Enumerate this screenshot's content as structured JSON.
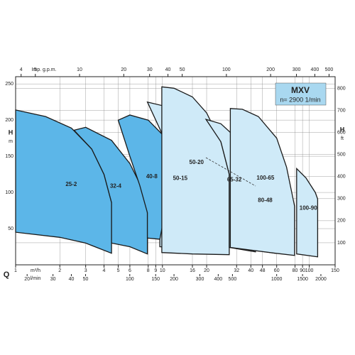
{
  "chart_data": {
    "type": "region",
    "title": "MXV",
    "subtitle": "n= 2900 1/min",
    "x_symbol": "Q",
    "x_label": "m³/h",
    "x3_label": "l/min",
    "x2_label": "Imp. g.p.m.",
    "y_label": "H",
    "y_unit": "m",
    "y2_label": "H",
    "y2_unit": "ft",
    "log_x": true,
    "grid": true,
    "xlim": [
      1,
      150
    ],
    "xticks": [
      1,
      2,
      3,
      4,
      5,
      6,
      8,
      9,
      10,
      16,
      20,
      32,
      40,
      48,
      60,
      80,
      90,
      100,
      150
    ],
    "x2lim": [
      3.67,
      550
    ],
    "x2ticks": [
      4,
      5,
      10,
      20,
      30,
      40,
      50,
      100,
      200,
      300,
      400,
      500
    ],
    "x3lim": [
      16.7,
      2500
    ],
    "x3ticks": [
      20,
      30,
      40,
      50,
      100,
      150,
      200,
      300,
      400,
      500,
      1000,
      1500,
      2000
    ],
    "ylim": [
      0,
      260
    ],
    "yticks": [
      50,
      100,
      150,
      200,
      250
    ],
    "y2lim": [
      0,
      853
    ],
    "y2ticks": [
      100,
      200,
      300,
      400,
      500,
      600,
      700,
      800
    ],
    "series": [
      {
        "name": "25-2",
        "color": "#5cb6e8",
        "x": [
          1,
          1.6,
          2.4,
          3.3,
          4,
          4.5,
          4.5,
          3,
          2,
          1
        ],
        "values": [
          214,
          205,
          189,
          160,
          125,
          86,
          16,
          30,
          38,
          45
        ]
      },
      {
        "name": "32-4",
        "color": "#5cb6e8",
        "x": [
          2.5,
          3,
          4.5,
          6,
          7.5,
          7.9,
          7.9,
          6,
          4.5,
          4.5,
          4,
          3.3
        ],
        "values": [
          186,
          190,
          172,
          140,
          100,
          72,
          15,
          25,
          30,
          86,
          125,
          160
        ]
      },
      {
        "name": "40-8",
        "color": "#5cb6e8",
        "x": [
          5,
          6,
          8,
          10,
          12,
          13.4,
          13.4,
          10,
          7.9,
          7.9,
          7,
          6
        ],
        "values": [
          200,
          207,
          200,
          180,
          140,
          96,
          32,
          35,
          37,
          72,
          110,
          150
        ]
      },
      {
        "name": "50-15",
        "color": "#cfeaf8",
        "x": [
          7.9,
          10,
          15,
          20,
          23.4,
          23.4,
          15,
          9.6,
          9.6,
          12,
          10
        ],
        "values": [
          225,
          220,
          195,
          150,
          101,
          21,
          23,
          25,
          35,
          140,
          180
        ]
      },
      {
        "name": "50-20",
        "color": "#cfeaf8",
        "x": [
          9.9,
          12,
          16,
          20,
          25,
          28.5,
          28.5,
          16,
          9.9
        ],
        "values": [
          246,
          244,
          232,
          210,
          170,
          125,
          14,
          15,
          17
        ]
      },
      {
        "name": "65-32",
        "color": "#cfeaf8",
        "x": [
          19.8,
          25,
          32,
          38,
          43,
          43,
          35,
          28.5,
          28.5,
          25
        ],
        "values": [
          201,
          195,
          175,
          145,
          101,
          18,
          21,
          24,
          125,
          170
        ]
      },
      {
        "name": "80-48",
        "color": "#cfeaf8",
        "x": [
          43,
          45,
          50,
          55,
          58.9,
          58.9,
          43
        ],
        "values": [
          101,
          128,
          135,
          120,
          101,
          16,
          20
        ]
      },
      {
        "name": "100-65",
        "color": "#cfeaf8",
        "x": [
          29,
          35,
          45,
          60,
          70,
          79.4,
          79.4,
          58.9,
          29
        ],
        "values": [
          216,
          215,
          205,
          175,
          135,
          81,
          13,
          16,
          24
        ]
      },
      {
        "name": "100-90",
        "color": "#cfeaf8",
        "x": [
          82,
          95,
          110,
          114,
          114,
          82
        ],
        "values": [
          133,
          120,
          100,
          91,
          11,
          15
        ]
      }
    ]
  }
}
